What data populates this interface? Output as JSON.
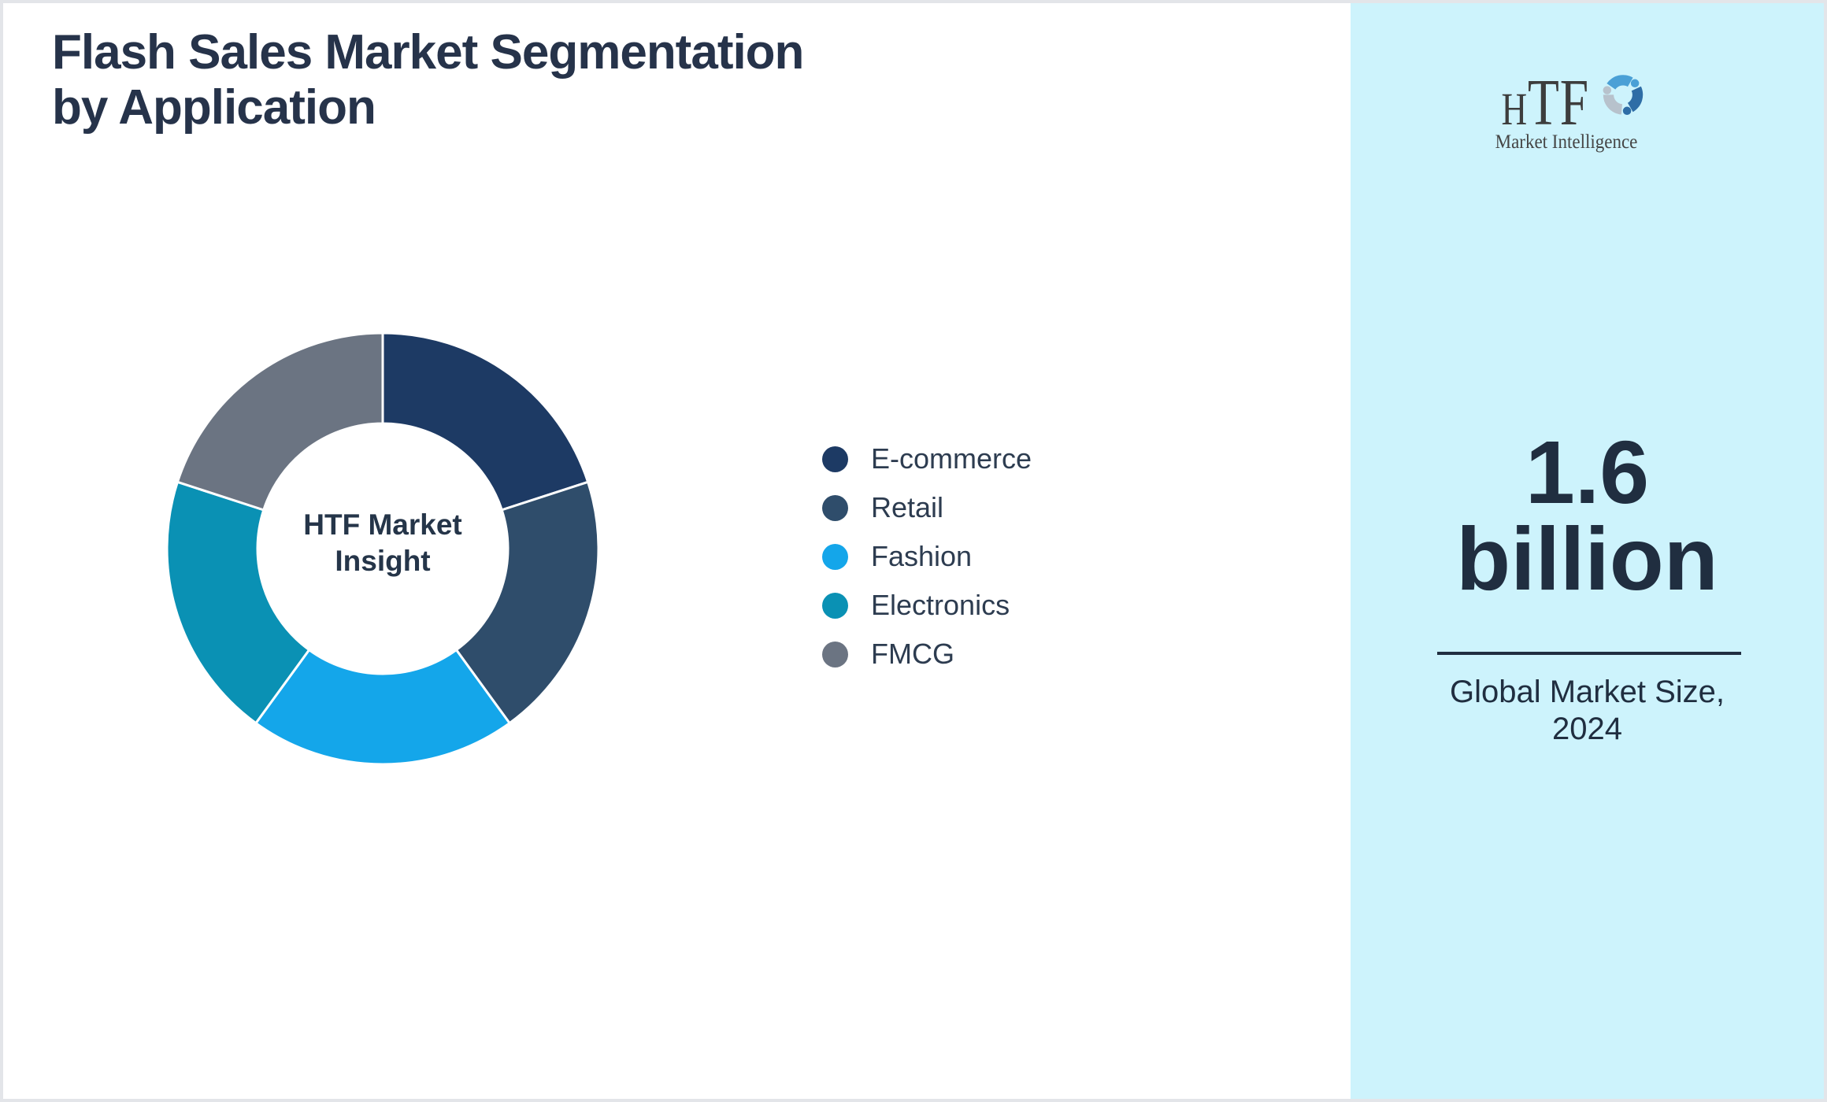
{
  "page": {
    "bg": "#ffffff",
    "border_color": "#e3e5e9"
  },
  "header": {
    "title_line1": "Flash Sales Market Segmentation",
    "title_line2": "by Application"
  },
  "chart_data": {
    "type": "donut",
    "title": "Flash Sales Market Segmentation by Application",
    "categories": [
      "E-commerce",
      "Retail",
      "Fashion",
      "Electronics",
      "FMCG"
    ],
    "values": [
      20,
      20,
      20,
      20,
      20
    ],
    "unit": "%",
    "segment_colors": [
      "#1d3a64",
      "#2f4d6b",
      "#14a6ea",
      "#0a91b4",
      "#6b7482"
    ],
    "start_angle_deg": 0,
    "direction": "clockwise",
    "inner_radius_ratio": 0.58,
    "legend_position": "right",
    "center_label_line1": "HTF Market",
    "center_label_line2": "Insight"
  },
  "sidebar": {
    "bg": "#cdf3fc",
    "logo": {
      "letters": [
        "H",
        "T",
        "F"
      ],
      "subtitle": "Market Intelligence",
      "text_color": "#3d3d3d",
      "swirl_colors": [
        "#4aa0d6",
        "#2e6da6",
        "#b7c2cc"
      ]
    },
    "stat": {
      "value_line1": "1.6",
      "value_line2": "billion",
      "caption_line1": "Global Market Size,",
      "caption_line2": "2024",
      "text_color": "#202e40"
    }
  }
}
